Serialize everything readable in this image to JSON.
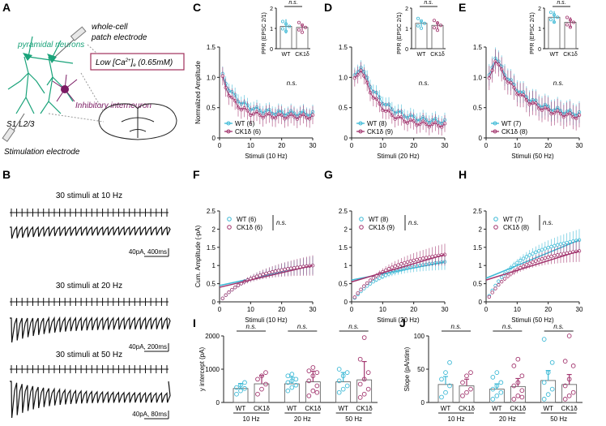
{
  "colors": {
    "wt": "#3cb9d6",
    "ck1": "#a2356e",
    "black": "#111111",
    "green": "#1aa37a",
    "purple": "#7b1a63",
    "box": "#a0305a",
    "axis": "#222222"
  },
  "panelA": {
    "letter": "A",
    "pyramidal": "pyramidal neurons",
    "patch_line1": "whole-cell",
    "patch_line2": "patch electrode",
    "calcium_prefix": "Low [Ca",
    "calcium_sup": "2+",
    "calcium_mid": "]",
    "calcium_sub": "e",
    "calcium_suffix": " (0.65mM)",
    "interneuron": "Inhibitory interneuron",
    "region": "S1 L2/3",
    "stim": "Stimulation electrode"
  },
  "panelB": {
    "letter": "B",
    "traces": [
      {
        "title": "30 stimuli at 10 Hz",
        "scale": "40pA, 400ms"
      },
      {
        "title": "30 stimuli at 20 Hz",
        "scale": "40pA, 200ms"
      },
      {
        "title": "30 stimuli at 50 Hz",
        "scale": "40pA, 80ms"
      }
    ]
  },
  "chart_data": [
    {
      "id": "C",
      "type": "line",
      "title": "",
      "xlabel": "Stimuli (10 Hz)",
      "ylabel": "Normalized Amplitude",
      "xlim": [
        0,
        30
      ],
      "ylim": [
        0,
        1.5
      ],
      "yticks": [
        "0",
        "0.5",
        "1.0",
        "1.5"
      ],
      "xticks": [
        "0",
        "10",
        "20",
        "30"
      ],
      "annotation": "n.s.",
      "legend": [
        {
          "label": "WT (6)"
        },
        {
          "label": "CK1δ (6)"
        }
      ],
      "series": [
        {
          "name": "WT",
          "start": 1.02,
          "end": 0.4,
          "tau": 5,
          "peak": 0,
          "err": 0.12
        },
        {
          "name": "CK1δ",
          "start": 0.98,
          "end": 0.35,
          "tau": 4,
          "peak": 0,
          "err": 0.15
        }
      ],
      "inset": {
        "ylabel": "PPR (EPSC 2/1)",
        "yticks": [
          "0",
          "1",
          "2"
        ],
        "ymax": 2,
        "categories": [
          "WT",
          "CK1δ"
        ],
        "values": [
          1.1,
          1.05
        ],
        "errors": [
          0.35,
          0.15
        ],
        "label": "n.s."
      }
    },
    {
      "id": "D",
      "type": "line",
      "xlabel": "Stimuli (20 Hz)",
      "ylabel": "",
      "xlim": [
        0,
        30
      ],
      "ylim": [
        0,
        1.5
      ],
      "yticks": [
        "0",
        "0.5",
        "1.0",
        "1.5"
      ],
      "xticks": [
        "0",
        "10",
        "20",
        "30"
      ],
      "annotation": "n.s.",
      "legend": [
        {
          "label": "WT (8)"
        },
        {
          "label": "CK1δ (9)"
        }
      ],
      "series": [
        {
          "name": "WT",
          "start": 1.0,
          "end": 0.25,
          "tau": 7,
          "peak": 1.2,
          "err": 0.12
        },
        {
          "name": "CK1δ",
          "start": 0.95,
          "end": 0.2,
          "tau": 6,
          "peak": 1.15,
          "err": 0.14
        }
      ],
      "inset": {
        "ylabel": "PPR (EPSC 2/1)",
        "yticks": [
          "0",
          "1",
          "2"
        ],
        "ymax": 2,
        "categories": [
          "WT",
          "CK1δ"
        ],
        "values": [
          1.25,
          1.15
        ],
        "errors": [
          0.15,
          0.2
        ],
        "label": "n.s."
      }
    },
    {
      "id": "E",
      "type": "line",
      "xlabel": "Stimuli (50 Hz)",
      "ylabel": "",
      "xlim": [
        0,
        30
      ],
      "ylim": [
        0,
        1.5
      ],
      "yticks": [
        "0",
        "0.5",
        "1.0",
        "1.5"
      ],
      "xticks": [
        "0",
        "10",
        "20",
        "30"
      ],
      "annotation": "n.s.",
      "legend": [
        {
          "label": "WT (7)"
        },
        {
          "label": "CK1δ (8)"
        }
      ],
      "series": [
        {
          "name": "WT",
          "start": 1.0,
          "end": 0.35,
          "tau": 9,
          "peak": 1.35,
          "err": 0.18
        },
        {
          "name": "CK1δ",
          "start": 0.95,
          "end": 0.3,
          "tau": 9,
          "peak": 1.3,
          "err": 0.2
        }
      ],
      "inset": {
        "ylabel": "PPR (EPSC 2/1)",
        "yticks": [
          "0",
          "1",
          "2"
        ],
        "ymax": 2,
        "categories": [
          "WT",
          "CK1δ"
        ],
        "values": [
          1.55,
          1.3
        ],
        "errors": [
          0.3,
          0.25
        ],
        "label": "n.s."
      }
    },
    {
      "id": "F",
      "type": "scatter",
      "xlabel": "Stimuli (10 Hz)",
      "ylabel": "Cum. Amplitude (-pA)",
      "xlim": [
        0,
        30
      ],
      "ylim": [
        0,
        2.5
      ],
      "yticks": [
        "0",
        "0.5",
        "1",
        "1.5",
        "2",
        "2.5"
      ],
      "xticks": [
        "0",
        "10",
        "20",
        "30"
      ],
      "annotation": "n.s.",
      "legend": [
        {
          "label": "WT (6)"
        },
        {
          "label": "CK1δ (6)"
        }
      ],
      "series": [
        {
          "name": "WT",
          "final": 1.0,
          "intercept": 0.45,
          "err": 0.25
        },
        {
          "name": "CK1δ",
          "final": 1.0,
          "intercept": 0.4,
          "err": 0.28
        }
      ]
    },
    {
      "id": "G",
      "type": "scatter",
      "xlabel": "Stimuli (20 Hz)",
      "ylabel": "",
      "xlim": [
        0,
        30
      ],
      "ylim": [
        0,
        2.5
      ],
      "yticks": [
        "0",
        "0.5",
        "1",
        "1.5",
        "2",
        "2.5"
      ],
      "xticks": [
        "0",
        "10",
        "20",
        "30"
      ],
      "annotation": "n.s.",
      "legend": [
        {
          "label": "WT (8)"
        },
        {
          "label": "CK1δ (9)"
        }
      ],
      "series": [
        {
          "name": "WT",
          "final": 1.1,
          "intercept": 0.6,
          "err": 0.22
        },
        {
          "name": "CK1δ",
          "final": 1.3,
          "intercept": 0.55,
          "err": 0.3
        }
      ]
    },
    {
      "id": "H",
      "type": "scatter",
      "xlabel": "Stimuli (50 Hz)",
      "ylabel": "",
      "xlim": [
        0,
        30
      ],
      "ylim": [
        0,
        2.5
      ],
      "yticks": [
        "0",
        "0.5",
        "1",
        "1.5",
        "2",
        "2.5"
      ],
      "xticks": [
        "0",
        "10",
        "20",
        "30"
      ],
      "annotation": "n.s.",
      "legend": [
        {
          "label": "WT (7)"
        },
        {
          "label": "CK1δ (8)"
        }
      ],
      "series": [
        {
          "name": "WT",
          "final": 1.7,
          "intercept": 0.65,
          "err": 0.3
        },
        {
          "name": "CK1δ",
          "final": 1.4,
          "intercept": 0.6,
          "err": 0.3
        }
      ]
    },
    {
      "id": "I",
      "type": "bar",
      "ylabel": "y intercept (pA)",
      "ylim": [
        0,
        2000
      ],
      "yticks": [
        "0",
        "1000",
        "2000"
      ],
      "groups": [
        {
          "label": "10 Hz",
          "ns": "n.s.",
          "bars": [
            {
              "cat": "WT",
              "value": 420,
              "err": 150,
              "pts": [
                250,
                350,
                420,
                450,
                520,
                600
              ]
            },
            {
              "cat": "CK1δ",
              "value": 560,
              "err": 250,
              "pts": [
                250,
                400,
                550,
                700,
                800,
                900
              ]
            }
          ]
        },
        {
          "label": "20 Hz",
          "ns": "n.s.",
          "bars": [
            {
              "cat": "WT",
              "value": 560,
              "err": 200,
              "pts": [
                350,
                450,
                520,
                600,
                650,
                700,
                800,
                850
              ]
            },
            {
              "cat": "CK1δ",
              "value": 620,
              "err": 320,
              "pts": [
                200,
                350,
                500,
                650,
                800,
                900,
                950,
                1050,
                300
              ]
            }
          ]
        },
        {
          "label": "50 Hz",
          "ns": "n.s.",
          "bars": [
            {
              "cat": "WT",
              "value": 620,
              "err": 280,
              "pts": [
                300,
                400,
                500,
                650,
                800,
                900,
                1000
              ]
            },
            {
              "cat": "CK1δ",
              "value": 680,
              "err": 550,
              "pts": [
                150,
                250,
                400,
                550,
                700,
                900,
                1300,
                1950
              ]
            }
          ]
        }
      ]
    },
    {
      "id": "J",
      "type": "bar",
      "ylabel": "Slope (pA/stim)",
      "ylim": [
        0,
        100
      ],
      "yticks": [
        "0",
        "50",
        "100"
      ],
      "groups": [
        {
          "label": "10 Hz",
          "ns": "n.s.",
          "bars": [
            {
              "cat": "WT",
              "value": 27,
              "err": 12,
              "pts": [
                8,
                15,
                25,
                35,
                45,
                60
              ]
            },
            {
              "cat": "CK1δ",
              "value": 25,
              "err": 10,
              "pts": [
                10,
                15,
                20,
                30,
                40,
                45
              ]
            }
          ]
        },
        {
          "label": "20 Hz",
          "ns": "n.s.",
          "bars": [
            {
              "cat": "WT",
              "value": 20,
              "err": 8,
              "pts": [
                5,
                10,
                15,
                20,
                25,
                30,
                38,
                45
              ]
            },
            {
              "cat": "CK1δ",
              "value": 24,
              "err": 12,
              "pts": [
                5,
                10,
                18,
                25,
                30,
                40,
                55,
                65,
                8
              ]
            }
          ]
        },
        {
          "label": "50 Hz",
          "ns": "n.s.",
          "bars": [
            {
              "cat": "WT",
              "value": 33,
              "err": 15,
              "pts": [
                5,
                12,
                20,
                30,
                45,
                60,
                95
              ]
            },
            {
              "cat": "CK1δ",
              "value": 27,
              "err": 15,
              "pts": [
                5,
                10,
                15,
                25,
                35,
                55,
                62,
                100
              ]
            }
          ]
        }
      ]
    }
  ]
}
